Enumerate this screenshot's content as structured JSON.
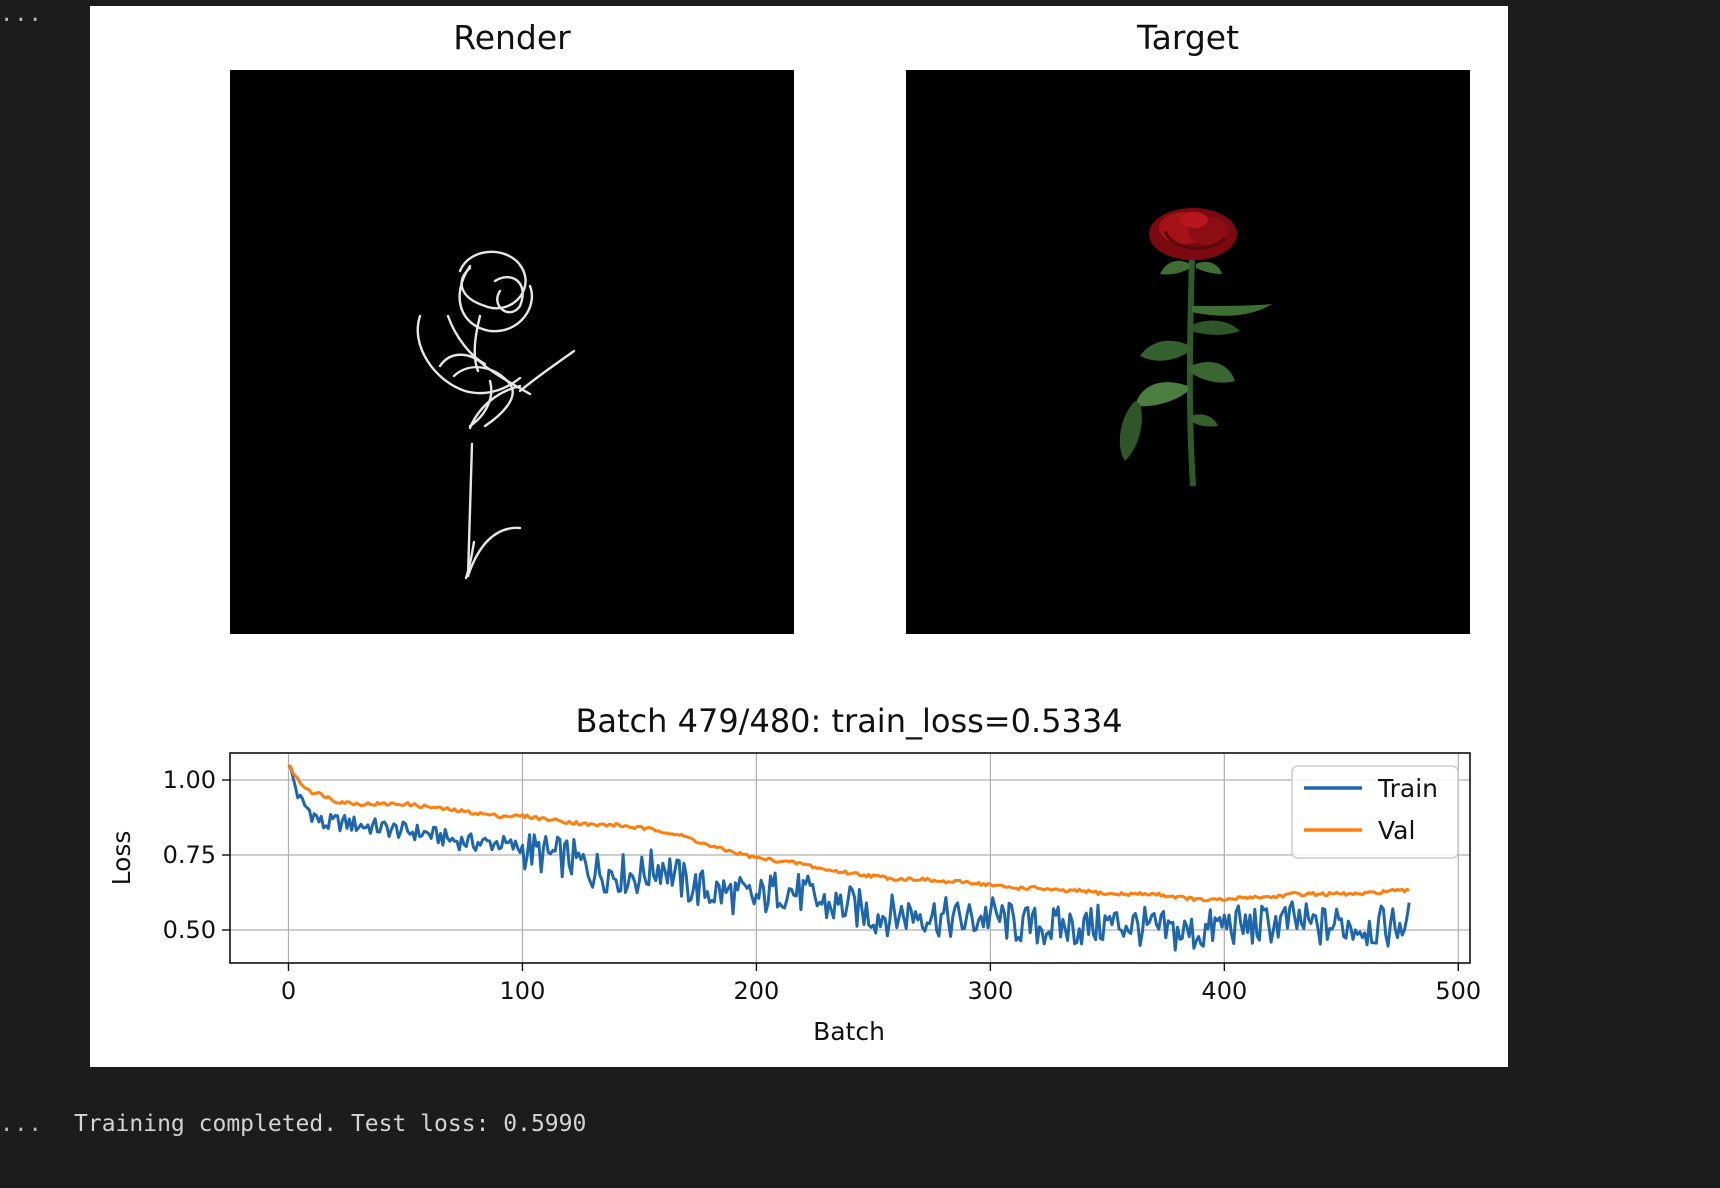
{
  "cell": {
    "prompt_marker": "...",
    "output_text": "Training completed. Test loss: 0.5990"
  },
  "figure": {
    "panels": [
      {
        "title": "Render",
        "content": "white line sketch of a rose on black background"
      },
      {
        "title": "Target",
        "content": "photo of a red rose with green stem and leaves on black background"
      }
    ],
    "colors": {
      "train": "#1f67ad",
      "val": "#ff7f0e",
      "panel_bg": "#000000",
      "sketch": "#e6e6e6"
    }
  },
  "chart_data": {
    "type": "line",
    "title": "Batch 479/480: train_loss=0.5334",
    "xlabel": "Batch",
    "ylabel": "Loss",
    "xlim": [
      -25,
      505
    ],
    "ylim": [
      0.39,
      1.09
    ],
    "xticks": [
      0,
      100,
      200,
      300,
      400,
      500
    ],
    "yticks": [
      0.5,
      0.75,
      1.0
    ],
    "ytick_labels": [
      "0.50",
      "0.75",
      "1.00"
    ],
    "grid": true,
    "legend": {
      "position": "top-right",
      "entries": [
        "Train",
        "Val"
      ]
    },
    "series": [
      {
        "name": "Train",
        "x": [
          0,
          5,
          10,
          15,
          20,
          30,
          40,
          50,
          60,
          70,
          80,
          90,
          100,
          110,
          120,
          130,
          140,
          150,
          160,
          170,
          180,
          190,
          200,
          210,
          220,
          230,
          240,
          250,
          260,
          270,
          280,
          290,
          300,
          310,
          320,
          330,
          340,
          350,
          360,
          370,
          380,
          390,
          400,
          410,
          420,
          430,
          440,
          450,
          460,
          470,
          479
        ],
        "y": [
          1.05,
          0.93,
          0.89,
          0.85,
          0.86,
          0.85,
          0.84,
          0.83,
          0.82,
          0.8,
          0.79,
          0.79,
          0.77,
          0.75,
          0.74,
          0.7,
          0.69,
          0.68,
          0.72,
          0.65,
          0.63,
          0.62,
          0.6,
          0.64,
          0.62,
          0.58,
          0.58,
          0.55,
          0.55,
          0.56,
          0.54,
          0.53,
          0.55,
          0.52,
          0.51,
          0.51,
          0.51,
          0.52,
          0.52,
          0.5,
          0.49,
          0.49,
          0.52,
          0.51,
          0.52,
          0.53,
          0.51,
          0.52,
          0.51,
          0.51,
          0.53
        ]
      },
      {
        "name": "Val",
        "x": [
          0,
          5,
          10,
          15,
          20,
          30,
          40,
          50,
          60,
          70,
          80,
          90,
          100,
          110,
          120,
          130,
          140,
          150,
          160,
          170,
          180,
          190,
          200,
          210,
          220,
          230,
          240,
          250,
          260,
          270,
          280,
          290,
          300,
          310,
          320,
          330,
          340,
          350,
          360,
          370,
          380,
          390,
          400,
          410,
          420,
          430,
          440,
          450,
          460,
          470,
          479
        ],
        "y": [
          1.05,
          0.99,
          0.96,
          0.95,
          0.93,
          0.92,
          0.92,
          0.92,
          0.91,
          0.9,
          0.89,
          0.88,
          0.88,
          0.87,
          0.86,
          0.85,
          0.85,
          0.84,
          0.83,
          0.81,
          0.78,
          0.76,
          0.74,
          0.73,
          0.72,
          0.7,
          0.69,
          0.68,
          0.67,
          0.67,
          0.66,
          0.66,
          0.65,
          0.64,
          0.64,
          0.63,
          0.63,
          0.62,
          0.62,
          0.62,
          0.61,
          0.6,
          0.6,
          0.61,
          0.61,
          0.62,
          0.62,
          0.62,
          0.62,
          0.63,
          0.63
        ]
      }
    ]
  }
}
